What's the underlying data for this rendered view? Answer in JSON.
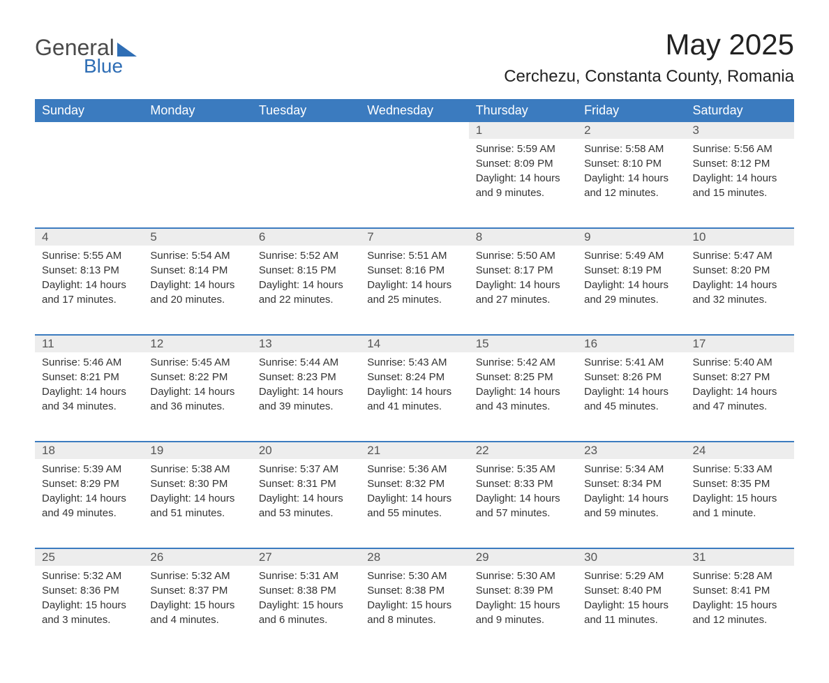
{
  "logo": {
    "text1": "General",
    "text2": "Blue"
  },
  "title": "May 2025",
  "location": "Cerchezu, Constanta County, Romania",
  "colors": {
    "header_bg": "#3b7bbf",
    "header_text": "#ffffff",
    "daynum_bg": "#ededed",
    "row_border": "#3b7bbf",
    "logo_accent": "#2f6eb5",
    "body_text": "#333333",
    "background": "#ffffff"
  },
  "days_of_week": [
    "Sunday",
    "Monday",
    "Tuesday",
    "Wednesday",
    "Thursday",
    "Friday",
    "Saturday"
  ],
  "weeks": [
    [
      null,
      null,
      null,
      null,
      {
        "num": "1",
        "sunrise": "5:59 AM",
        "sunset": "8:09 PM",
        "daylight": "14 hours and 9 minutes."
      },
      {
        "num": "2",
        "sunrise": "5:58 AM",
        "sunset": "8:10 PM",
        "daylight": "14 hours and 12 minutes."
      },
      {
        "num": "3",
        "sunrise": "5:56 AM",
        "sunset": "8:12 PM",
        "daylight": "14 hours and 15 minutes."
      }
    ],
    [
      {
        "num": "4",
        "sunrise": "5:55 AM",
        "sunset": "8:13 PM",
        "daylight": "14 hours and 17 minutes."
      },
      {
        "num": "5",
        "sunrise": "5:54 AM",
        "sunset": "8:14 PM",
        "daylight": "14 hours and 20 minutes."
      },
      {
        "num": "6",
        "sunrise": "5:52 AM",
        "sunset": "8:15 PM",
        "daylight": "14 hours and 22 minutes."
      },
      {
        "num": "7",
        "sunrise": "5:51 AM",
        "sunset": "8:16 PM",
        "daylight": "14 hours and 25 minutes."
      },
      {
        "num": "8",
        "sunrise": "5:50 AM",
        "sunset": "8:17 PM",
        "daylight": "14 hours and 27 minutes."
      },
      {
        "num": "9",
        "sunrise": "5:49 AM",
        "sunset": "8:19 PM",
        "daylight": "14 hours and 29 minutes."
      },
      {
        "num": "10",
        "sunrise": "5:47 AM",
        "sunset": "8:20 PM",
        "daylight": "14 hours and 32 minutes."
      }
    ],
    [
      {
        "num": "11",
        "sunrise": "5:46 AM",
        "sunset": "8:21 PM",
        "daylight": "14 hours and 34 minutes."
      },
      {
        "num": "12",
        "sunrise": "5:45 AM",
        "sunset": "8:22 PM",
        "daylight": "14 hours and 36 minutes."
      },
      {
        "num": "13",
        "sunrise": "5:44 AM",
        "sunset": "8:23 PM",
        "daylight": "14 hours and 39 minutes."
      },
      {
        "num": "14",
        "sunrise": "5:43 AM",
        "sunset": "8:24 PM",
        "daylight": "14 hours and 41 minutes."
      },
      {
        "num": "15",
        "sunrise": "5:42 AM",
        "sunset": "8:25 PM",
        "daylight": "14 hours and 43 minutes."
      },
      {
        "num": "16",
        "sunrise": "5:41 AM",
        "sunset": "8:26 PM",
        "daylight": "14 hours and 45 minutes."
      },
      {
        "num": "17",
        "sunrise": "5:40 AM",
        "sunset": "8:27 PM",
        "daylight": "14 hours and 47 minutes."
      }
    ],
    [
      {
        "num": "18",
        "sunrise": "5:39 AM",
        "sunset": "8:29 PM",
        "daylight": "14 hours and 49 minutes."
      },
      {
        "num": "19",
        "sunrise": "5:38 AM",
        "sunset": "8:30 PM",
        "daylight": "14 hours and 51 minutes."
      },
      {
        "num": "20",
        "sunrise": "5:37 AM",
        "sunset": "8:31 PM",
        "daylight": "14 hours and 53 minutes."
      },
      {
        "num": "21",
        "sunrise": "5:36 AM",
        "sunset": "8:32 PM",
        "daylight": "14 hours and 55 minutes."
      },
      {
        "num": "22",
        "sunrise": "5:35 AM",
        "sunset": "8:33 PM",
        "daylight": "14 hours and 57 minutes."
      },
      {
        "num": "23",
        "sunrise": "5:34 AM",
        "sunset": "8:34 PM",
        "daylight": "14 hours and 59 minutes."
      },
      {
        "num": "24",
        "sunrise": "5:33 AM",
        "sunset": "8:35 PM",
        "daylight": "15 hours and 1 minute."
      }
    ],
    [
      {
        "num": "25",
        "sunrise": "5:32 AM",
        "sunset": "8:36 PM",
        "daylight": "15 hours and 3 minutes."
      },
      {
        "num": "26",
        "sunrise": "5:32 AM",
        "sunset": "8:37 PM",
        "daylight": "15 hours and 4 minutes."
      },
      {
        "num": "27",
        "sunrise": "5:31 AM",
        "sunset": "8:38 PM",
        "daylight": "15 hours and 6 minutes."
      },
      {
        "num": "28",
        "sunrise": "5:30 AM",
        "sunset": "8:38 PM",
        "daylight": "15 hours and 8 minutes."
      },
      {
        "num": "29",
        "sunrise": "5:30 AM",
        "sunset": "8:39 PM",
        "daylight": "15 hours and 9 minutes."
      },
      {
        "num": "30",
        "sunrise": "5:29 AM",
        "sunset": "8:40 PM",
        "daylight": "15 hours and 11 minutes."
      },
      {
        "num": "31",
        "sunrise": "5:28 AM",
        "sunset": "8:41 PM",
        "daylight": "15 hours and 12 minutes."
      }
    ]
  ],
  "labels": {
    "sunrise": "Sunrise:",
    "sunset": "Sunset:",
    "daylight": "Daylight:"
  }
}
